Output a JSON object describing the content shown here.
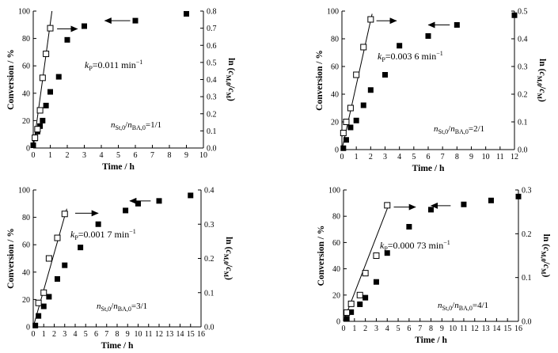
{
  "chart_data": [
    {
      "type": "scatter",
      "panel": "a",
      "xlabel": "Time / h",
      "ylabel_left": "Conversion / %",
      "ylabel_right": "ln (c_M,0/c_M)",
      "xlim": [
        0,
        10
      ],
      "xticks": [
        0,
        1,
        2,
        3,
        4,
        5,
        6,
        7,
        8,
        9,
        10
      ],
      "ylim_left": [
        0,
        100
      ],
      "yticks_left": [
        0,
        20,
        40,
        60,
        80,
        100
      ],
      "ylim_right": [
        0,
        0.8
      ],
      "yticks_right": [
        0.0,
        0.1,
        0.2,
        0.3,
        0.4,
        0.5,
        0.6,
        0.7,
        0.8
      ],
      "annotation": {
        "kp_label": "k_P",
        "kp_value": "=0.011 min",
        "kp_exp": "−1"
      },
      "ratio": {
        "n": "n",
        "s1": "St,0",
        "s2": "BA,0",
        "value": "=1/1"
      },
      "series": [
        {
          "marker": "filled-square",
          "axis": "left",
          "x": [
            0,
            0.1,
            0.25,
            0.4,
            0.55,
            0.75,
            1.0,
            1.5,
            2.0,
            3.0,
            6.0,
            9.0
          ],
          "y": [
            2,
            7,
            12,
            16,
            20,
            31,
            41,
            52,
            79,
            89,
            93,
            98
          ]
        },
        {
          "marker": "open-square",
          "axis": "right",
          "x": [
            0.1,
            0.25,
            0.4,
            0.55,
            0.75,
            1.0
          ],
          "y": [
            0.06,
            0.11,
            0.22,
            0.41,
            0.55,
            0.7
          ]
        }
      ],
      "fit_line": {
        "axis": "right",
        "x": [
          0,
          1.1
        ],
        "y": [
          0.0,
          0.8
        ]
      },
      "arrows": [
        {
          "from_x": 1.4,
          "to_x": 2.6,
          "y": 87
        },
        {
          "from_x": 5.7,
          "to_x": 4.2,
          "y": 93
        }
      ]
    },
    {
      "type": "scatter",
      "panel": "b",
      "xlabel": "Time / h",
      "ylabel_left": "Conversion / %",
      "ylabel_right": "ln (c_M,0/c_M)",
      "xlim": [
        0,
        12
      ],
      "xticks": [
        0,
        1,
        2,
        3,
        4,
        5,
        6,
        7,
        8,
        9,
        10,
        11,
        12
      ],
      "ylim_left": [
        0,
        100
      ],
      "yticks_left": [
        0,
        20,
        40,
        60,
        80,
        100
      ],
      "ylim_right": [
        0,
        0.5
      ],
      "yticks_right": [
        0.0,
        0.1,
        0.2,
        0.3,
        0.4,
        0.5
      ],
      "annotation": {
        "kp_label": "k_P",
        "kp_value": "=0.003 6 min",
        "kp_exp": "−1"
      },
      "ratio": {
        "n": "n",
        "s1": "St,0",
        "s2": "BA,0",
        "value": "=2/1"
      },
      "series": [
        {
          "marker": "filled-square",
          "axis": "left",
          "x": [
            0.1,
            0.3,
            0.6,
            1.0,
            1.5,
            2.0,
            3.0,
            4.0,
            6.0,
            8.0,
            12.0
          ],
          "y": [
            1,
            7,
            16,
            21,
            32,
            43,
            54,
            75,
            82,
            90,
            97
          ]
        },
        {
          "marker": "open-square",
          "axis": "right",
          "x": [
            0.1,
            0.3,
            0.6,
            1.0,
            1.5,
            2.0
          ],
          "y": [
            0.06,
            0.1,
            0.15,
            0.27,
            0.37,
            0.47
          ]
        }
      ],
      "fit_line": {
        "axis": "right",
        "x": [
          0,
          2.1
        ],
        "y": [
          0.0,
          0.49
        ]
      },
      "arrows": [
        {
          "from_x": 2.4,
          "to_x": 3.8,
          "y": 93
        },
        {
          "from_x": 7.5,
          "to_x": 6.0,
          "y": 90
        }
      ]
    },
    {
      "type": "scatter",
      "panel": "c",
      "xlabel": "Time / h",
      "ylabel_left": "Conversion / %",
      "ylabel_right": "ln (c_M,0/c_M)",
      "xlim": [
        0,
        16
      ],
      "xticks": [
        0,
        1,
        2,
        3,
        4,
        5,
        6,
        7,
        8,
        9,
        10,
        11,
        12,
        13,
        14,
        15,
        16
      ],
      "ylim_left": [
        0,
        100
      ],
      "yticks_left": [
        0,
        20,
        40,
        60,
        80,
        100
      ],
      "ylim_right": [
        0,
        0.4
      ],
      "yticks_right": [
        0.0,
        0.1,
        0.2,
        0.3,
        0.4
      ],
      "annotation": {
        "kp_label": "k_P",
        "kp_value": "=0.001 7 min",
        "kp_exp": "−1"
      },
      "ratio": {
        "n": "n",
        "s1": "St,0",
        "s2": "BA,0",
        "value": "=3/1"
      },
      "series": [
        {
          "marker": "filled-square",
          "axis": "left",
          "x": [
            0.2,
            0.5,
            1.0,
            1.5,
            2.3,
            3.0,
            4.5,
            6.2,
            8.8,
            10.0,
            12.0,
            15.0
          ],
          "y": [
            1,
            8,
            15,
            22,
            35,
            45,
            58,
            75,
            85,
            90,
            92,
            96
          ]
        },
        {
          "marker": "open-square",
          "axis": "right",
          "x": [
            0.5,
            1.0,
            1.5,
            2.3,
            3.0
          ],
          "y": [
            0.07,
            0.1,
            0.2,
            0.26,
            0.33
          ]
        }
      ],
      "fit_line": {
        "axis": "right",
        "x": [
          0,
          3.2
        ],
        "y": [
          0.0,
          0.345
        ]
      },
      "arrows": [
        {
          "from_x": 4.0,
          "to_x": 6.2,
          "y": 83
        },
        {
          "from_x": 11.2,
          "to_x": 9.2,
          "y": 92
        }
      ]
    },
    {
      "type": "scatter",
      "panel": "d",
      "xlabel": "Time / h",
      "ylabel_left": "Conversion / %",
      "ylabel_right": "ln (c_M,0/c_M)",
      "xlim": [
        0,
        16
      ],
      "xticks": [
        0,
        1,
        2,
        3,
        4,
        5,
        6,
        7,
        8,
        9,
        10,
        11,
        12,
        13,
        14,
        15,
        16
      ],
      "ylim_left": [
        0,
        100
      ],
      "yticks_left": [
        0,
        20,
        40,
        60,
        80,
        100
      ],
      "ylim_right": [
        0,
        0.3
      ],
      "yticks_right": [
        0.0,
        0.1,
        0.2,
        0.3
      ],
      "annotation": {
        "kp_label": "k_P",
        "kp_value": "=0.000 73 min",
        "kp_exp": "−1"
      },
      "ratio": {
        "n": "n",
        "s1": "St,0",
        "s2": "BA,0",
        "value": "=4/1"
      },
      "series": [
        {
          "marker": "filled-square",
          "axis": "left",
          "x": [
            0.3,
            0.7,
            1.5,
            2.0,
            3.0,
            4.0,
            6.0,
            8.0,
            11.0,
            13.5,
            16.0
          ],
          "y": [
            2,
            7,
            13,
            18,
            30,
            52,
            72,
            85,
            89,
            92,
            95
          ]
        },
        {
          "marker": "open-square",
          "axis": "right",
          "x": [
            0.3,
            0.7,
            1.5,
            2.0,
            3.0,
            4.0
          ],
          "y": [
            0.02,
            0.04,
            0.06,
            0.11,
            0.15,
            0.265
          ]
        }
      ],
      "fit_line": {
        "axis": "right",
        "x": [
          0,
          4.2
        ],
        "y": [
          0.0,
          0.27
        ]
      },
      "arrows": [
        {
          "from_x": 4.6,
          "to_x": 6.6,
          "y": 87
        },
        {
          "from_x": 9.8,
          "to_x": 8.0,
          "y": 88
        }
      ]
    }
  ]
}
